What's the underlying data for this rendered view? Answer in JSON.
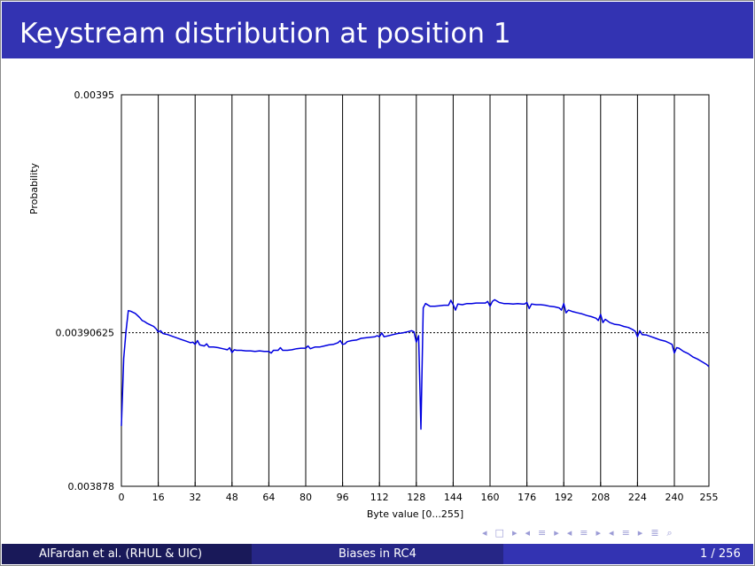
{
  "slide": {
    "title": "Keystream distribution at position 1",
    "footer": {
      "author": "AlFardan et al.  (RHUL & UIC)",
      "short_title": "Biases in RC4",
      "page": "1 / 256"
    },
    "nav_icons": [
      "nav-left-icon",
      "frame-icon",
      "nav-right-icon",
      "nav-left-icon",
      "subsection-icon",
      "nav-right-icon",
      "nav-left-icon",
      "section-icon",
      "nav-right-icon",
      "nav-left-icon",
      "presentation-icon",
      "nav-right-icon",
      "align-icon",
      "search-icon"
    ]
  },
  "chart_data": {
    "type": "line",
    "title": "",
    "xlabel": "Byte value [0...255]",
    "ylabel": "Probability",
    "xlim": [
      0,
      255
    ],
    "ylim": [
      0.003878,
      0.00395
    ],
    "xticks": [
      0,
      16,
      32,
      48,
      64,
      80,
      96,
      112,
      128,
      144,
      160,
      176,
      192,
      208,
      224,
      240,
      255
    ],
    "ytick_labels": [
      "0.00395",
      "0.00390625",
      "0.003878"
    ],
    "grid": true,
    "colors": {
      "line": "#0000e0",
      "grid": "#000000"
    },
    "series": [
      {
        "x": [
          0,
          1,
          2,
          3,
          4,
          5,
          6,
          7,
          8,
          9,
          10,
          11,
          12,
          13,
          14,
          15,
          16,
          17,
          18,
          19,
          20,
          22,
          24,
          26,
          28,
          30,
          31,
          32,
          33,
          34,
          36,
          37,
          38,
          40,
          42,
          44,
          46,
          47,
          48,
          49,
          50,
          52,
          54,
          56,
          58,
          60,
          62,
          64,
          65,
          66,
          68,
          69,
          70,
          72,
          74,
          76,
          78,
          80,
          81,
          82,
          84,
          86,
          88,
          90,
          92,
          94,
          95,
          96,
          97,
          98,
          100,
          102,
          104,
          106,
          108,
          110,
          111,
          112,
          113,
          114,
          116,
          118,
          120,
          122,
          124,
          126,
          127,
          128,
          129,
          130,
          131,
          132,
          134,
          136,
          138,
          140,
          142,
          143,
          144,
          145,
          146,
          148,
          150,
          152,
          154,
          156,
          158,
          159,
          160,
          161,
          162,
          164,
          166,
          168,
          170,
          172,
          174,
          175,
          176,
          177,
          178,
          180,
          182,
          184,
          186,
          188,
          190,
          191,
          192,
          193,
          194,
          196,
          198,
          200,
          202,
          204,
          206,
          207,
          208,
          209,
          210,
          212,
          214,
          216,
          218,
          220,
          222,
          223,
          224,
          225,
          226,
          228,
          230,
          232,
          234,
          236,
          238,
          239,
          240,
          241,
          242,
          244,
          246,
          248,
          250,
          252,
          254,
          255
        ],
        "y": [
          0.0038891,
          0.0039015,
          0.0039065,
          0.0039103,
          0.0039102,
          0.00391,
          0.0039098,
          0.0039094,
          0.003909,
          0.0039085,
          0.0039083,
          0.003908,
          0.0039078,
          0.0039076,
          0.0039074,
          0.003907,
          0.0039064,
          0.0039066,
          0.0039061,
          0.003906,
          0.0039059,
          0.0039056,
          0.0039053,
          0.003905,
          0.0039047,
          0.0039044,
          0.0039045,
          0.0039041,
          0.0039048,
          0.003904,
          0.0039038,
          0.0039042,
          0.0039036,
          0.0039036,
          0.0039035,
          0.0039033,
          0.0039031,
          0.0039035,
          0.0039026,
          0.0039031,
          0.003903,
          0.003903,
          0.0039029,
          0.0039029,
          0.0039028,
          0.0039029,
          0.0039028,
          0.0039028,
          0.0039025,
          0.003903,
          0.003903,
          0.0039035,
          0.003903,
          0.003903,
          0.0039031,
          0.0039033,
          0.0039034,
          0.0039034,
          0.0039038,
          0.0039033,
          0.0039036,
          0.0039036,
          0.0039038,
          0.003904,
          0.0039041,
          0.0039044,
          0.0039048,
          0.0039041,
          0.0039042,
          0.0039046,
          0.0039048,
          0.0039049,
          0.0039052,
          0.0039053,
          0.0039054,
          0.0039055,
          0.0039057,
          0.0039055,
          0.0039062,
          0.0039055,
          0.0039057,
          0.0039059,
          0.0039061,
          0.0039062,
          0.0039064,
          0.0039066,
          0.0039064,
          0.0039045,
          0.0039057,
          0.0038885,
          0.0039108,
          0.0039116,
          0.0039111,
          0.0039111,
          0.0039112,
          0.0039113,
          0.0039113,
          0.0039122,
          0.0039114,
          0.0039104,
          0.0039115,
          0.0039114,
          0.0039116,
          0.0039116,
          0.0039117,
          0.0039117,
          0.0039117,
          0.003912,
          0.0039111,
          0.003912,
          0.0039123,
          0.0039118,
          0.0039116,
          0.0039116,
          0.0039115,
          0.0039116,
          0.0039115,
          0.0039115,
          0.0039118,
          0.0039107,
          0.0039115,
          0.0039114,
          0.0039114,
          0.0039113,
          0.0039111,
          0.003911,
          0.0039108,
          0.0039104,
          0.0039116,
          0.0039099,
          0.0039104,
          0.0039101,
          0.0039099,
          0.0039097,
          0.0039094,
          0.0039092,
          0.0039089,
          0.0039085,
          0.0039096,
          0.0039081,
          0.0039087,
          0.0039081,
          0.0039078,
          0.0039077,
          0.0039074,
          0.0039072,
          0.0039068,
          0.0039065,
          0.0039055,
          0.0039066,
          0.0039059,
          0.0039058,
          0.0039055,
          0.0039052,
          0.0039049,
          0.0039047,
          0.0039043,
          0.0039041,
          0.0039025,
          0.0039035,
          0.0039034,
          0.0039028,
          0.0039024,
          0.0039018,
          0.0039014,
          0.0039009,
          0.0039004,
          0.0039
        ]
      }
    ]
  }
}
